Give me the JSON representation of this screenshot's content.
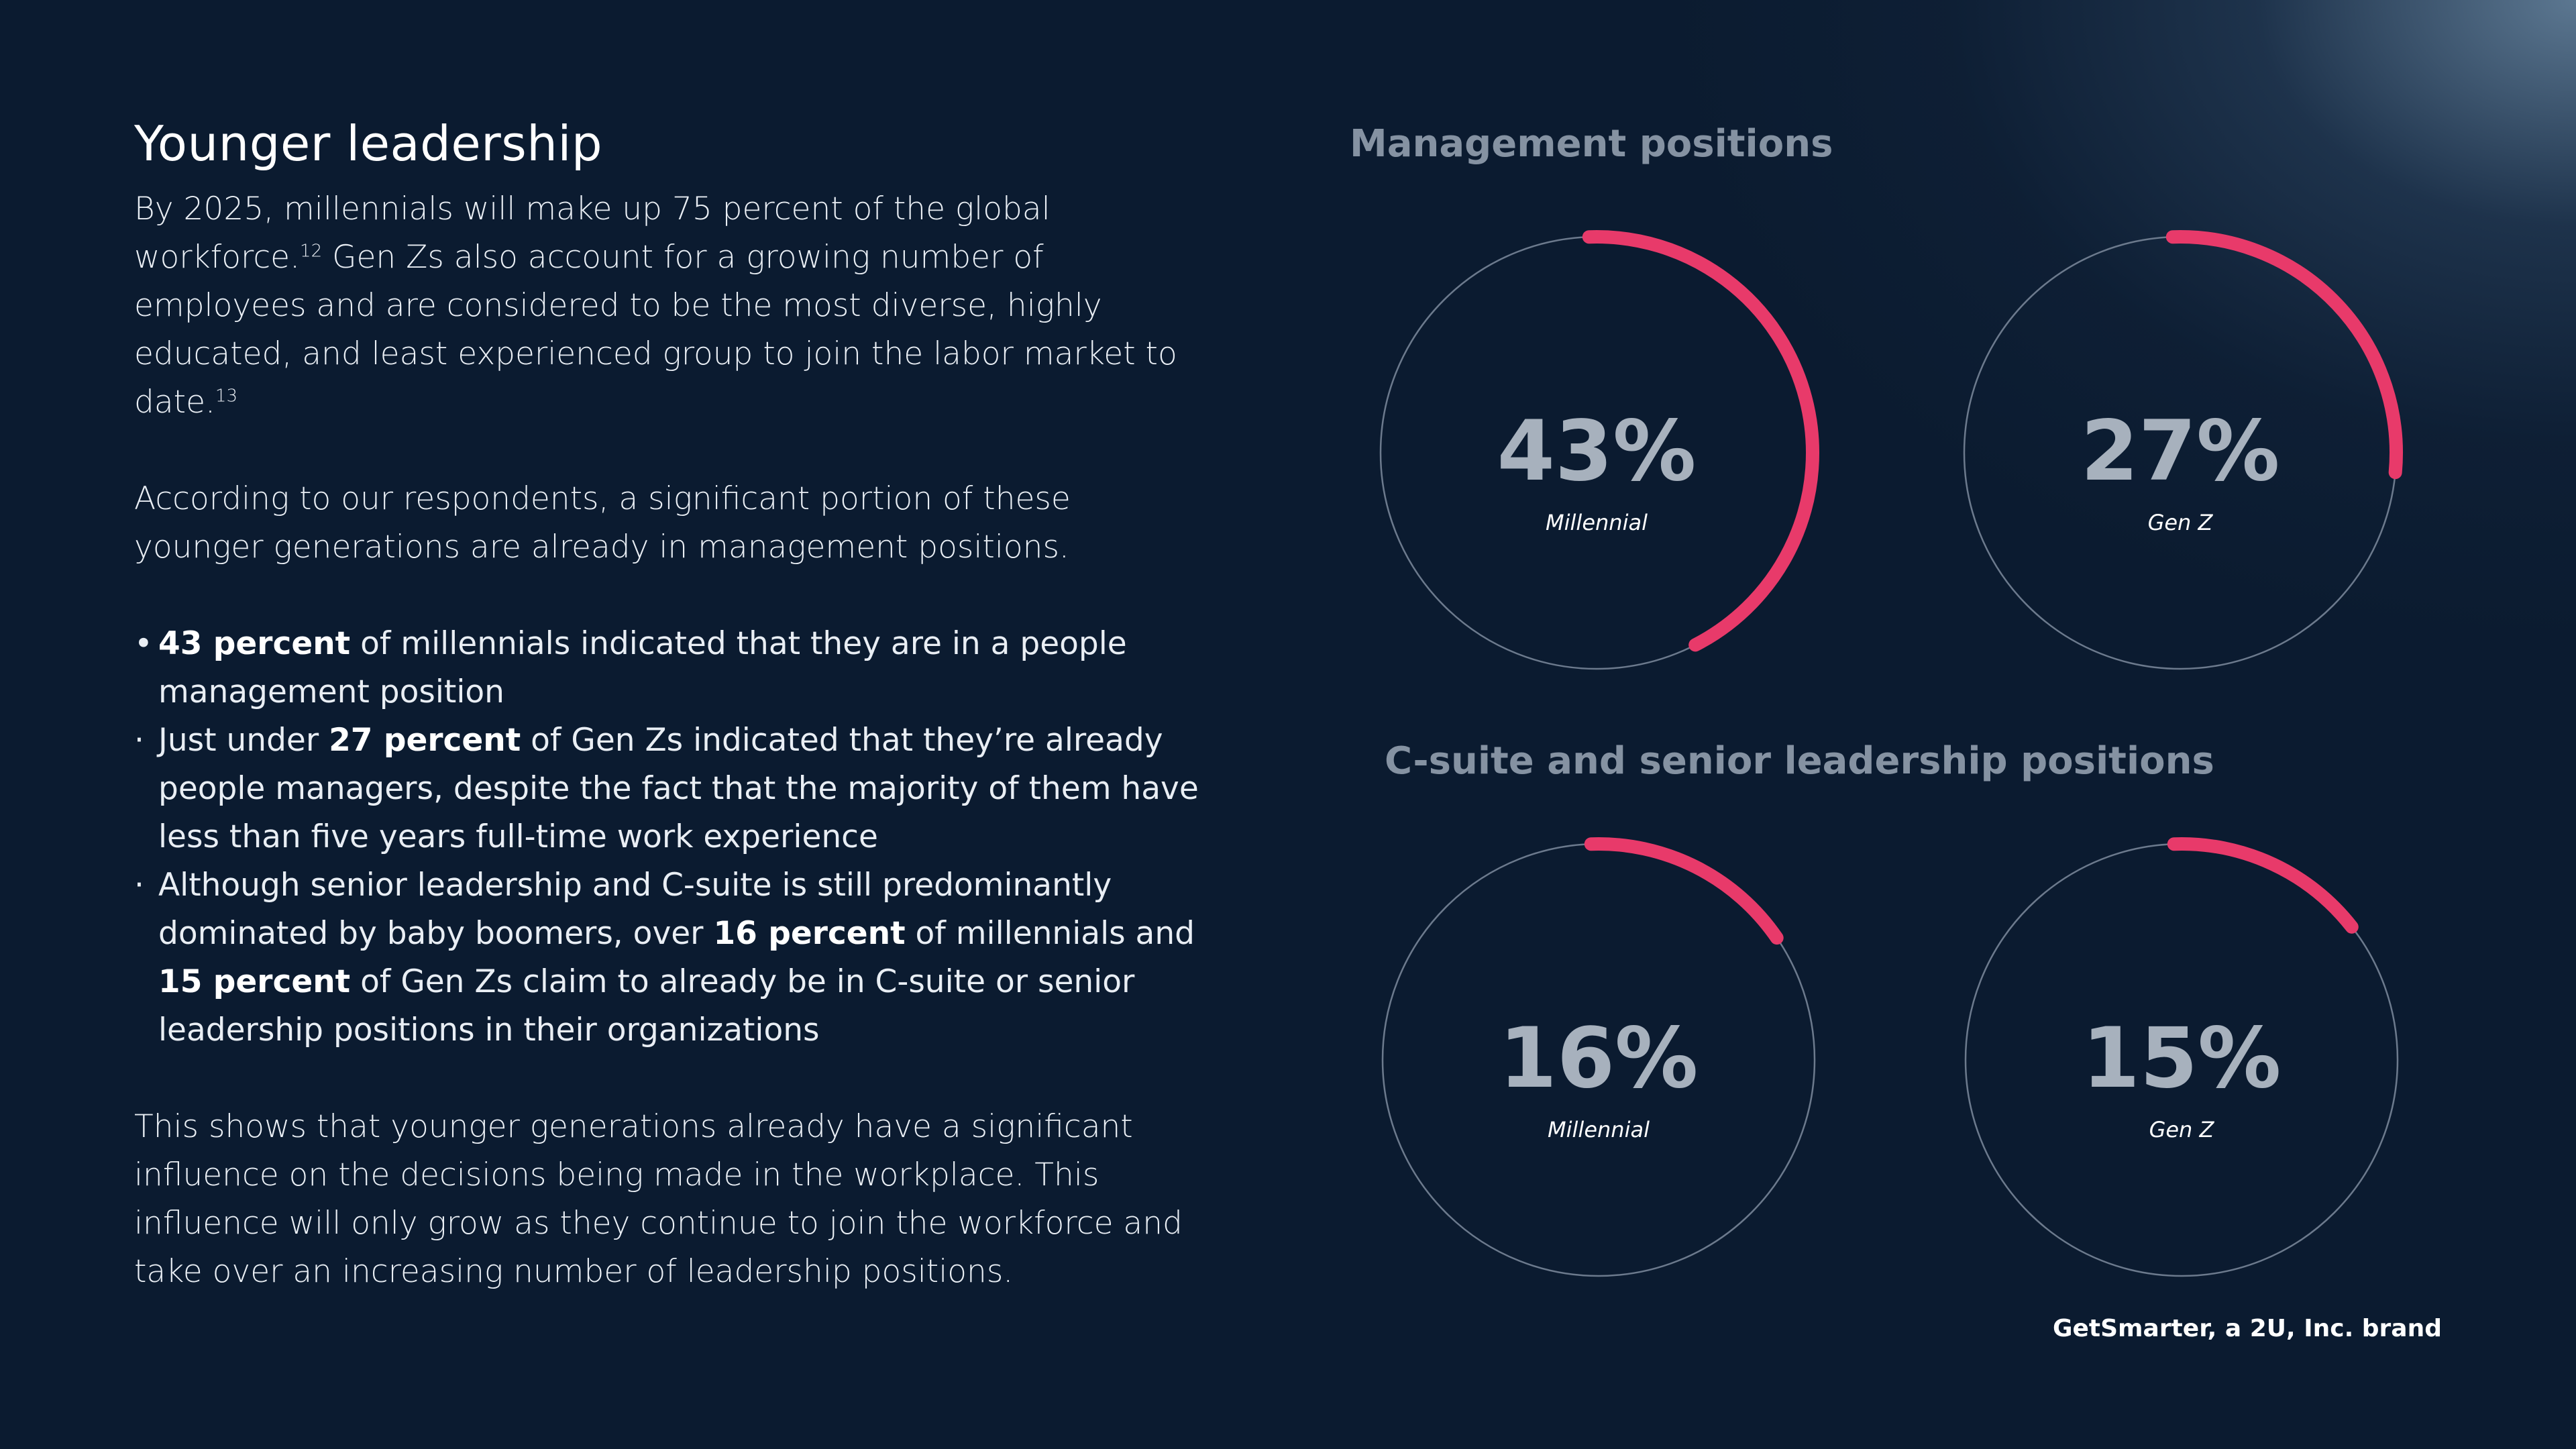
{
  "left": {
    "heading": "Younger leadership",
    "para1_line1": "By 2025, millennials will make up 75 percent of the global workforce.",
    "para1_sup1": "12",
    "para1_rest": "Gen Zs also account for a growing number of employees and are considered to be the most diverse, highly educated, and least experienced group to join the labor market to date.",
    "para1_sup2": "13",
    "para2": "According to our respondents, a significant portion of these younger generations are already in management positions.",
    "bullets": [
      {
        "dot": "•",
        "pre": "",
        "bold": "43 percent",
        "post": " of millennials indicated that they are in a people management position"
      },
      {
        "dot": "·",
        "pre": "Just under ",
        "bold": "27 percent",
        "post": " of Gen Zs indicated that they’re already people managers, despite the fact that the majority of them have less than five years full-time work experience"
      },
      {
        "dot": "·",
        "pre": "Although senior leadership and C-suite is still predominantly dominated by baby boomers, over ",
        "bold": "16 percent",
        "mid": " of millennials and ",
        "bold2": "15 percent",
        "post": " of Gen Zs claim to already be in C-suite or senior leadership positions in their organizations"
      }
    ],
    "para3": "This shows that younger generations already have a significant influence on the decisions being made in the workplace. This influence will only grow as they continue to join the workforce and take over an increasing number of leadership positions."
  },
  "brand": "GetSmarter, a 2U, Inc. brand",
  "colors": {
    "accent": "#e83a6a",
    "ring": "#6c7a8d",
    "value_text": "#a7b1bd",
    "section_title": "#8592a2"
  },
  "chart_data": [
    {
      "type": "pie",
      "title": "Management positions",
      "slices": [
        {
          "label": "Millennial",
          "value": 43,
          "display": "43%"
        },
        {
          "label": "Gen Z",
          "value": 27,
          "display": "27%"
        }
      ]
    },
    {
      "type": "pie",
      "title": "C-suite and senior leadership positions",
      "slices": [
        {
          "label": "Millennial",
          "value": 16,
          "display": "16%"
        },
        {
          "label": "Gen Z",
          "value": 15,
          "display": "15%"
        }
      ]
    }
  ]
}
